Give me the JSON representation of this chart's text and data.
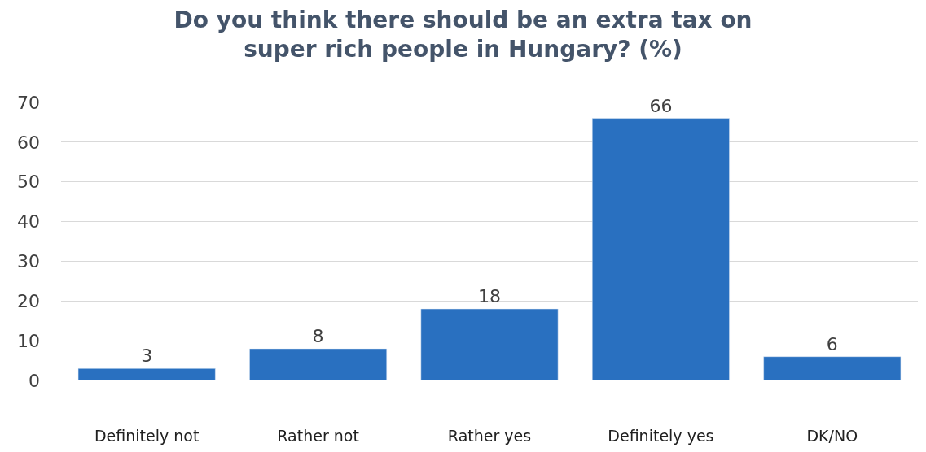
{
  "chart_data": {
    "type": "bar",
    "title": "Do you think there should be an extra tax on\nsuper rich people in Hungary? (%)",
    "categories": [
      "Definitely not",
      "Rather not",
      "Rather yes",
      "Definitely yes",
      "DK/NO"
    ],
    "values": [
      3,
      8,
      18,
      66,
      6
    ],
    "color": "#2970c0",
    "ylim": [
      0,
      70
    ],
    "yticks": [
      0,
      10,
      20,
      30,
      40,
      50,
      60,
      70
    ],
    "grid": "y",
    "data_labels": true,
    "legend": false
  }
}
